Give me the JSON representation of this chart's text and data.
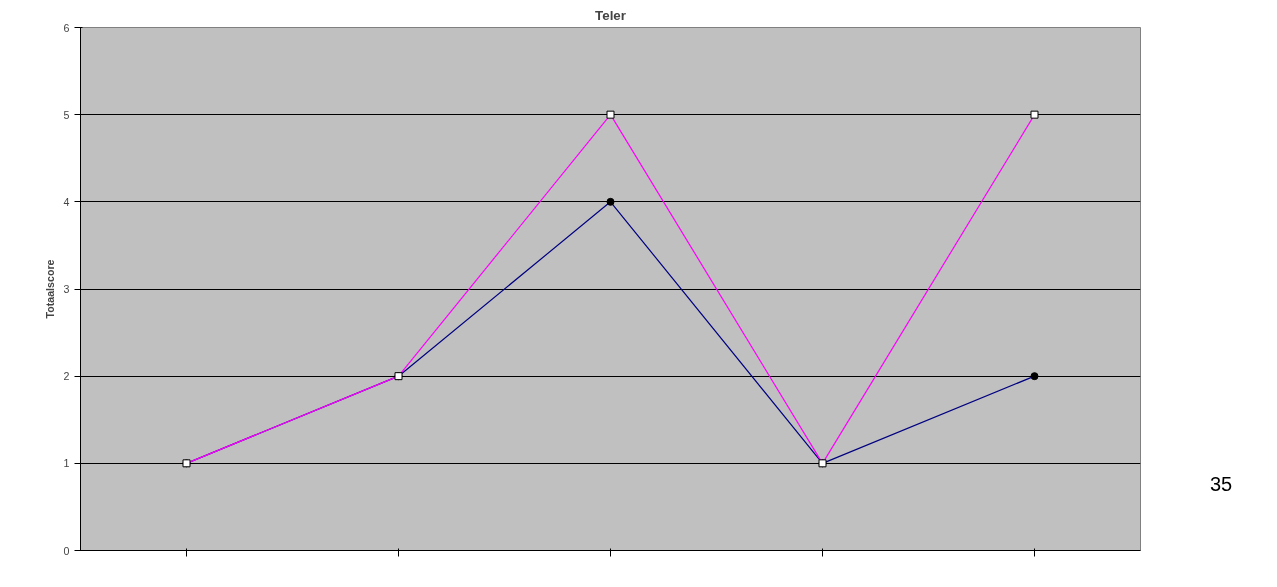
{
  "chart_data": {
    "type": "line",
    "title": "Teler",
    "ylabel": "Totaalscore",
    "categories": [
      null,
      null,
      null,
      null,
      null
    ],
    "series": [
      {
        "color": "#000080",
        "values": [
          1,
          2,
          4,
          1,
          2
        ],
        "marker": "circle"
      },
      {
        "color": "#ff00ff",
        "values": [
          1,
          2,
          5,
          1,
          5
        ],
        "marker": "square"
      }
    ],
    "ylim": [
      0,
      6
    ],
    "yticks": [
      0,
      1,
      2,
      3,
      4,
      5,
      6
    ],
    "grid": "y",
    "tick_labels": "y",
    "line_style": "solid",
    "annotations": [
      "35"
    ]
  }
}
